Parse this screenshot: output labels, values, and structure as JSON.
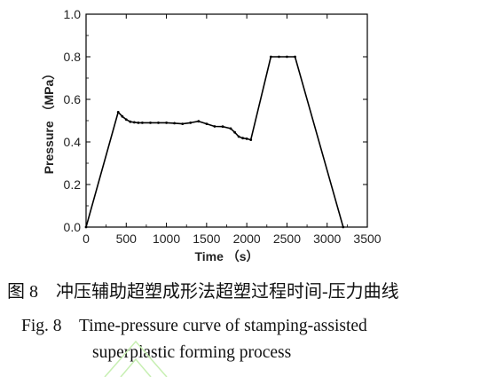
{
  "chart_data": {
    "type": "line",
    "title": "",
    "xlabel": "Time （s）",
    "ylabel": "Pressure （MPa）",
    "xlim": [
      0,
      3500
    ],
    "ylim": [
      0.0,
      1.0
    ],
    "xticks": [
      "0",
      "500",
      "1000",
      "1500",
      "2000",
      "2500",
      "3000",
      "3500"
    ],
    "yticks": [
      "0.0",
      "0.2",
      "0.4",
      "0.6",
      "0.8",
      "1.0"
    ],
    "grid": false,
    "series": [
      {
        "color": "#000000",
        "x": [
          0,
          400,
          450,
          500,
          550,
          600,
          650,
          700,
          800,
          900,
          1000,
          1100,
          1200,
          1300,
          1400,
          1500,
          1600,
          1700,
          1800,
          1850,
          1900,
          1950,
          2000,
          2050,
          2300,
          2400,
          2500,
          2600,
          3200
        ],
        "y": [
          0.0,
          0.54,
          0.52,
          0.505,
          0.495,
          0.492,
          0.49,
          0.49,
          0.49,
          0.49,
          0.49,
          0.488,
          0.485,
          0.49,
          0.497,
          0.485,
          0.473,
          0.472,
          0.463,
          0.445,
          0.425,
          0.418,
          0.415,
          0.41,
          0.8,
          0.8,
          0.8,
          0.8,
          0.0
        ]
      }
    ]
  },
  "captions": {
    "cn": "图 8　冲压辅助超塑成形法超塑过程时间-压力曲线",
    "en_line1": "Fig. 8　Time-pressure curve of stamping-assisted",
    "en_line2": "superplastic forming process"
  }
}
